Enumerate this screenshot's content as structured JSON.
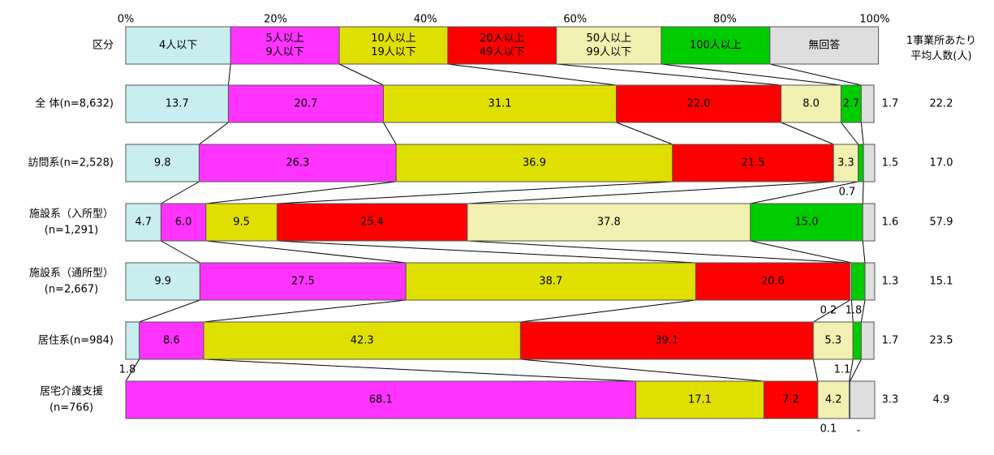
{
  "chart_data": {
    "type": "bar",
    "orientation": "horizontal",
    "stacked": true,
    "percent_axis": {
      "min": 0,
      "max": 100,
      "ticks": [
        0,
        20,
        40,
        60,
        80,
        100
      ],
      "tick_labels": [
        "0%",
        "20%",
        "40%",
        "60%",
        "80%",
        "100%"
      ]
    },
    "legend_row": {
      "label": "区分",
      "value_header": [
        "1事業所あたり",
        "平均人数(人)"
      ]
    },
    "legend_values": [
      14.0,
      14.5,
      14.5,
      14.5,
      14.0,
      14.5,
      14.5
    ],
    "segments": [
      {
        "name": [
          "4人以下"
        ],
        "color": "#c8eef0",
        "text_color": "#000000"
      },
      {
        "name": [
          "5人以上",
          "9人以下"
        ],
        "color": "#ff33ff",
        "text_color": "#ffffff"
      },
      {
        "name": [
          "10人以上",
          "19人以下"
        ],
        "color": "#e0e000",
        "text_color": "#000000"
      },
      {
        "name": [
          "20人以上",
          "49人以下"
        ],
        "color": "#ff0000",
        "text_color": "#ffffff"
      },
      {
        "name": [
          "50人以上",
          "99人以下"
        ],
        "color": "#f2f0b0",
        "text_color": "#000000"
      },
      {
        "name": [
          "100人以上"
        ],
        "color": "#00cc00",
        "text_color": "#000000"
      },
      {
        "name": [
          "無回答"
        ],
        "color": "#dedede",
        "text_color": "#000000"
      }
    ],
    "categories": [
      {
        "label": [
          "全 体(n=8,632)"
        ],
        "values": [
          13.7,
          20.7,
          31.1,
          22.0,
          8.0,
          2.7,
          1.7
        ],
        "average": "22.2"
      },
      {
        "label": [
          "訪問系(n=2,528)"
        ],
        "values": [
          9.8,
          26.3,
          36.9,
          21.5,
          3.3,
          0.7,
          1.5
        ],
        "average": "17.0"
      },
      {
        "label": [
          "施設系（入所型）",
          "(n=1,291)"
        ],
        "values": [
          4.7,
          6.0,
          9.5,
          25.4,
          37.8,
          15.0,
          1.6
        ],
        "average": "57.9"
      },
      {
        "label": [
          "施設系（通所型）",
          "(n=2,667)"
        ],
        "values": [
          9.9,
          27.5,
          38.7,
          20.6,
          0.2,
          1.8,
          1.3
        ],
        "average": "15.1"
      },
      {
        "label": [
          "居住系(n=984)"
        ],
        "values": [
          1.8,
          8.6,
          42.3,
          39.1,
          5.3,
          1.1,
          1.7
        ],
        "average": "23.5"
      },
      {
        "label": [
          "居宅介護支援",
          "(n=766)"
        ],
        "values": [
          0,
          68.1,
          17.1,
          7.2,
          4.2,
          0.1,
          3.3
        ],
        "average": "4.9"
      }
    ],
    "value_labels": [
      [
        "13.7",
        "20.7",
        "31.1",
        "22.0",
        "8.0",
        "2.7",
        "1.7"
      ],
      [
        "9.8",
        "26.3",
        "36.9",
        "21.5",
        "3.3",
        "0.7",
        "1.5"
      ],
      [
        "4.7",
        "6.0",
        "9.5",
        "25.4",
        "37.8",
        "15.0",
        "1.6"
      ],
      [
        "9.9",
        "27.5",
        "38.7",
        "20.6",
        "0.2",
        "1.8",
        "1.3"
      ],
      [
        "1.8",
        "8.6",
        "42.3",
        "39.1",
        "5.3",
        "1.1",
        "1.7"
      ],
      [
        "-",
        "68.1",
        "17.1",
        "7.2",
        "4.2",
        "0.1",
        "3.3"
      ]
    ],
    "grid": false,
    "legend_position": "top",
    "connector_lines": true
  }
}
